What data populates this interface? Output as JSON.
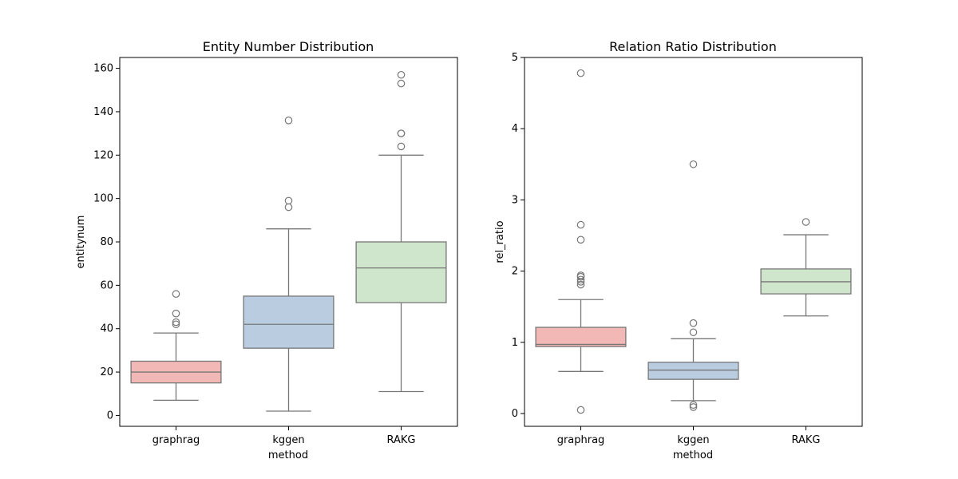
{
  "chart_data": [
    {
      "type": "box",
      "title": "Entity Number Distribution",
      "xlabel": "method",
      "ylabel": "entitynum",
      "ylim": [
        -5,
        165
      ],
      "yticks": [
        0,
        20,
        40,
        60,
        80,
        100,
        120,
        140,
        160
      ],
      "categories": [
        "graphrag",
        "kggen",
        "RAKG"
      ],
      "colors": [
        "#f2b8b5",
        "#b9cce0",
        "#cfe6cc"
      ],
      "boxes": [
        {
          "name": "graphrag",
          "whisker_low": 7,
          "q1": 15,
          "median": 20,
          "q3": 25,
          "whisker_high": 38,
          "outliers": [
            42,
            43,
            47,
            56
          ]
        },
        {
          "name": "kggen",
          "whisker_low": 2,
          "q1": 31,
          "median": 42,
          "q3": 55,
          "whisker_high": 86,
          "outliers": [
            96,
            99,
            136
          ]
        },
        {
          "name": "RAKG",
          "whisker_low": 11,
          "q1": 52,
          "median": 68,
          "q3": 80,
          "whisker_high": 120,
          "outliers": [
            124,
            130,
            130,
            153,
            157
          ]
        }
      ]
    },
    {
      "type": "box",
      "title": "Relation Ratio Distribution",
      "xlabel": "method",
      "ylabel": "rel_ratio",
      "ylim": [
        -0.18,
        5.0
      ],
      "yticks": [
        0,
        1,
        2,
        3,
        4,
        5
      ],
      "categories": [
        "graphrag",
        "kggen",
        "RAKG"
      ],
      "colors": [
        "#f2b8b5",
        "#b9cce0",
        "#cfe6cc"
      ],
      "boxes": [
        {
          "name": "graphrag",
          "whisker_low": 0.59,
          "q1": 0.94,
          "median": 0.97,
          "q3": 1.21,
          "whisker_high": 1.6,
          "outliers": [
            0.05,
            1.81,
            1.85,
            1.88,
            1.92,
            1.94,
            2.44,
            2.65,
            4.78
          ]
        },
        {
          "name": "kggen",
          "whisker_low": 0.18,
          "q1": 0.48,
          "median": 0.61,
          "q3": 0.72,
          "whisker_high": 1.05,
          "outliers": [
            0.09,
            0.12,
            1.14,
            1.27,
            3.5
          ]
        },
        {
          "name": "RAKG",
          "whisker_low": 1.37,
          "q1": 1.68,
          "median": 1.85,
          "q3": 2.03,
          "whisker_high": 2.51,
          "outliers": [
            2.69
          ]
        }
      ]
    }
  ]
}
